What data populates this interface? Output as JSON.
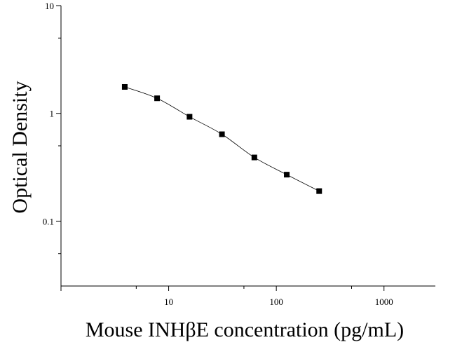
{
  "chart_data": {
    "type": "scatter",
    "title": "",
    "xlabel": "Mouse INHβE concentration (pg/mL)",
    "ylabel": "Optical Density",
    "xscale": "log",
    "yscale": "log",
    "xlim": [
      1,
      3000
    ],
    "ylim": [
      0.025,
      10
    ],
    "grid": false,
    "legend": "none",
    "x_ticks": [
      {
        "value": 10,
        "label": "10"
      },
      {
        "value": 100,
        "label": "100"
      },
      {
        "value": 1000,
        "label": "1000"
      }
    ],
    "y_ticks": [
      {
        "value": 0.1,
        "label": "0.1"
      },
      {
        "value": 1,
        "label": "1"
      },
      {
        "value": 10,
        "label": "10"
      }
    ],
    "series": [
      {
        "x": [
          3.91,
          7.81,
          15.63,
          31.25,
          62.5,
          125,
          250
        ],
        "y": [
          1.76,
          1.38,
          0.93,
          0.64,
          0.39,
          0.27,
          0.19
        ],
        "marker": "square",
        "fit": "smooth-curve",
        "color": "#000000"
      }
    ]
  }
}
